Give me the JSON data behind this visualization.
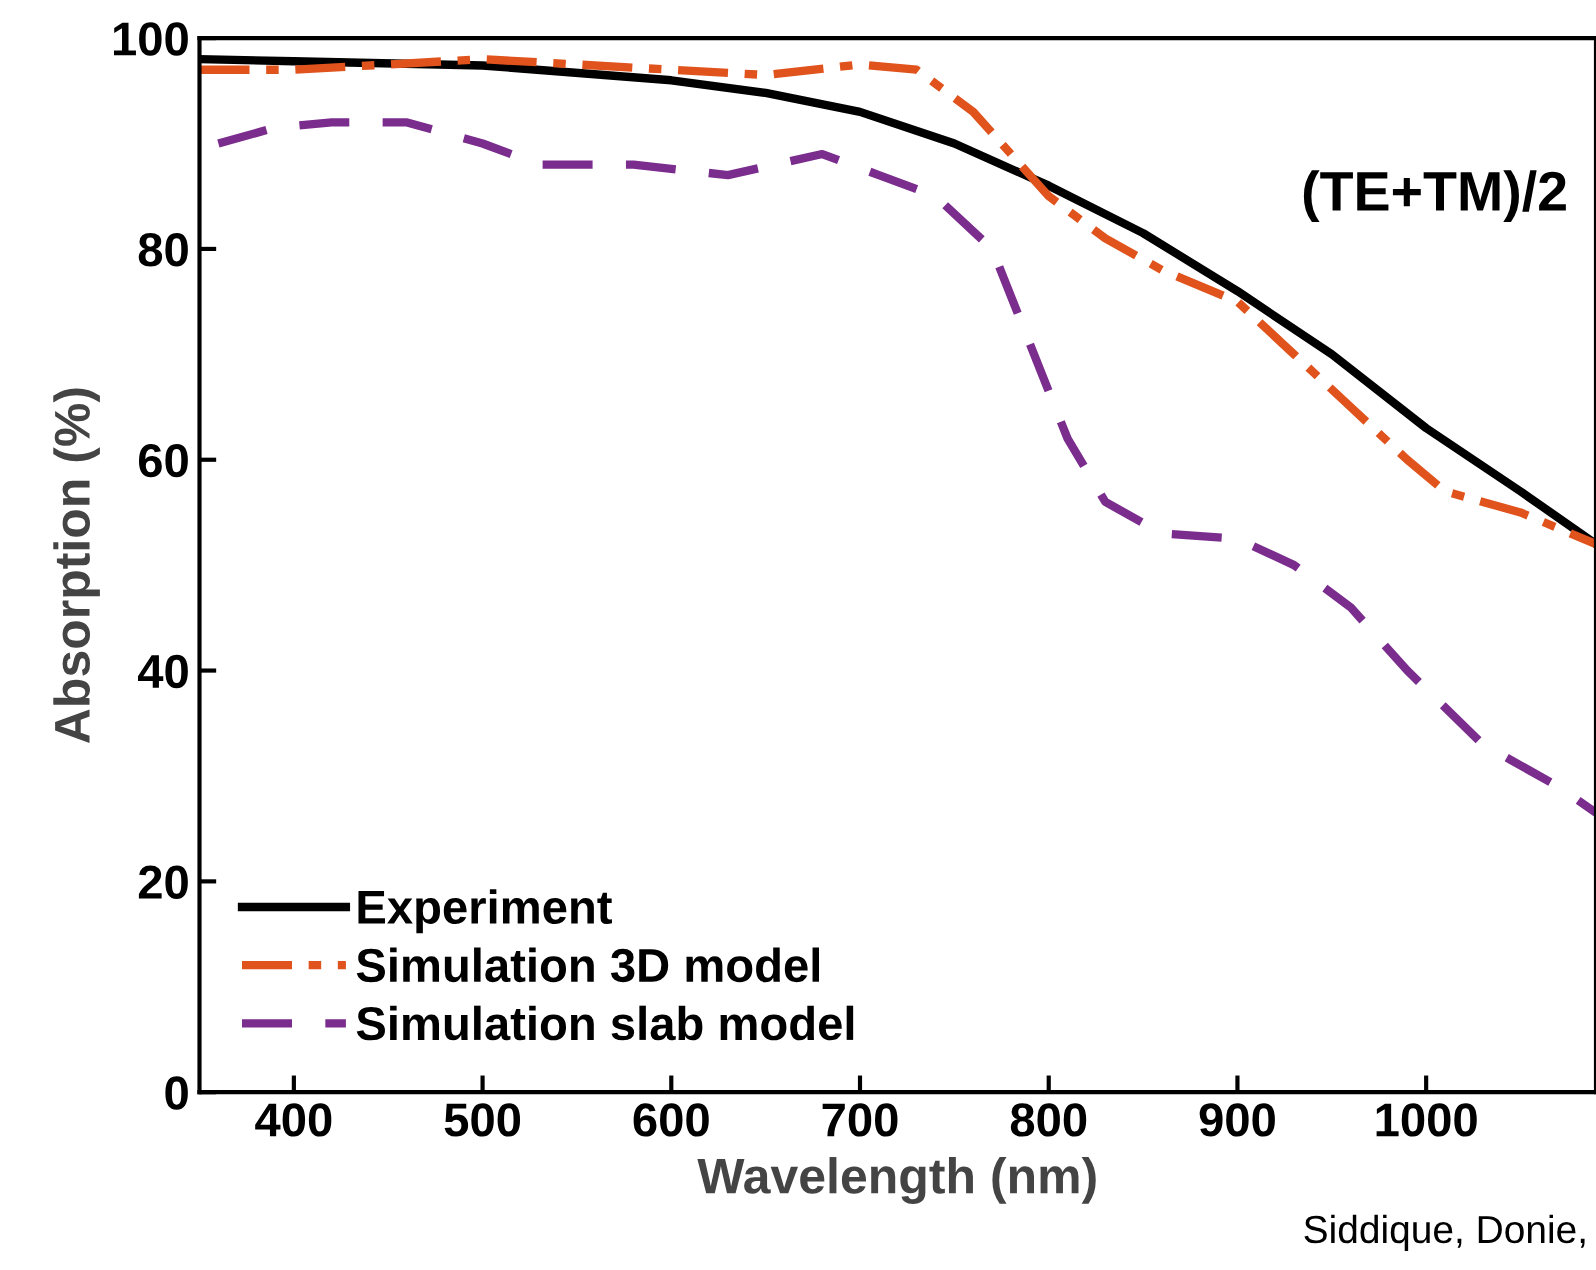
{
  "chart_data": {
    "type": "line",
    "xlabel": "Wavelength (nm)",
    "ylabel": "Absorption (%)",
    "xlim": [
      350,
      1090
    ],
    "ylim": [
      0,
      100
    ],
    "xticks": [
      400,
      500,
      600,
      700,
      800,
      900,
      1000
    ],
    "yticks": [
      0,
      20,
      40,
      60,
      80,
      100
    ],
    "grid": false,
    "legend": "bottom left",
    "marker": "none",
    "annotations": [
      "(TE+TM)/2",
      "Siddique, Donie,"
    ],
    "series": [
      {
        "name": "Experiment",
        "color": "#000000",
        "line_style": "solid",
        "x": [
          350,
          400,
          500,
          600,
          650,
          700,
          750,
          800,
          850,
          900,
          950,
          1000,
          1050,
          1090
        ],
        "values": [
          98,
          97.8,
          97.4,
          96,
          94.8,
          93,
          90,
          86,
          81.5,
          76,
          70,
          63,
          57,
          52
        ]
      },
      {
        "name": "Simulation 3D model",
        "color": "#e0531c",
        "line_style": "dashdot",
        "x": [
          350,
          400,
          450,
          500,
          550,
          600,
          650,
          700,
          730,
          760,
          780,
          800,
          830,
          860,
          900,
          930,
          960,
          990,
          1010,
          1050,
          1090
        ],
        "values": [
          97,
          97,
          97.5,
          98,
          97.5,
          97,
          96.5,
          97.5,
          97,
          93,
          89,
          85,
          81,
          78,
          75,
          70,
          65,
          60,
          57,
          55,
          52
        ]
      },
      {
        "name": "Simulation slab model",
        "color": "#7b2d8e",
        "line_style": "dashed",
        "x": [
          360,
          390,
          420,
          460,
          500,
          530,
          580,
          630,
          680,
          710,
          740,
          770,
          790,
          810,
          830,
          860,
          900,
          930,
          960,
          990,
          1030,
          1070,
          1090
        ],
        "values": [
          90,
          91.5,
          92,
          92,
          90,
          88,
          88,
          87,
          89,
          87,
          85,
          80,
          71,
          62,
          56,
          53,
          52.5,
          50,
          46,
          40,
          33,
          29,
          26.5
        ]
      }
    ]
  }
}
